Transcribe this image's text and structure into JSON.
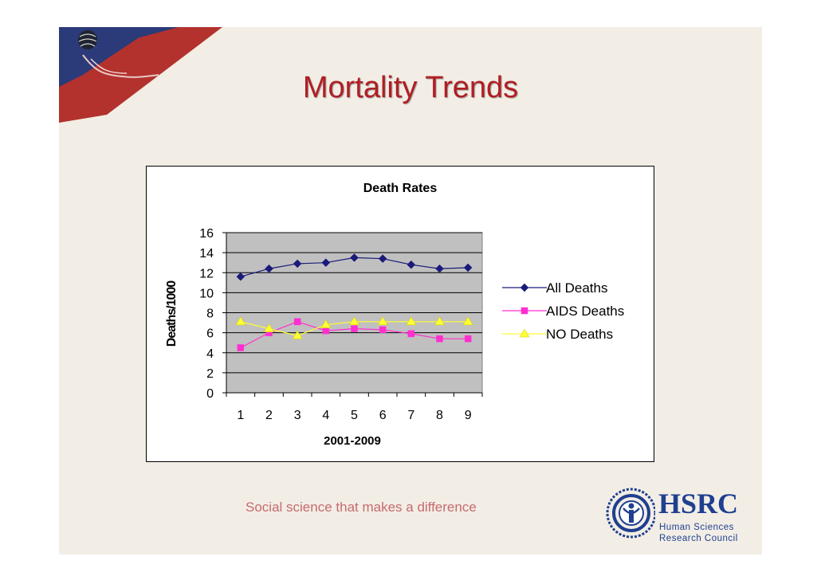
{
  "slide": {
    "title": "Mortality Trends",
    "tagline": "Social science that makes a difference"
  },
  "logo": {
    "name": "HSRC",
    "line1": "Human Sciences",
    "line2": "Research Council"
  },
  "colors": {
    "title": "#b01e24",
    "all_deaths": "#1a1a7a",
    "aids_deaths": "#ff2fd0",
    "no_deaths": "#ffff33",
    "plot_bg": "#c0c0c0",
    "logo": "#1f3f8f"
  },
  "chart_data": {
    "type": "line",
    "title": "Death Rates",
    "xlabel": "2001-2009",
    "ylabel": "Deaths/1000",
    "categories": [
      "1",
      "2",
      "3",
      "4",
      "5",
      "6",
      "7",
      "8",
      "9"
    ],
    "ylim": [
      0,
      16
    ],
    "yticks": [
      "0",
      "2",
      "4",
      "6",
      "8",
      "10",
      "12",
      "14",
      "16"
    ],
    "grid": true,
    "legend_position": "right",
    "series": [
      {
        "name": "All Deaths",
        "marker": "diamond",
        "values": [
          11.6,
          12.4,
          12.9,
          13.0,
          13.5,
          13.4,
          12.8,
          12.4,
          12.5
        ]
      },
      {
        "name": "AIDS Deaths",
        "marker": "square",
        "values": [
          4.5,
          6.0,
          7.1,
          6.2,
          6.4,
          6.3,
          5.9,
          5.4,
          5.4
        ]
      },
      {
        "name": "NO Deaths",
        "marker": "triangle",
        "values": [
          7.1,
          6.4,
          5.7,
          6.8,
          7.1,
          7.1,
          7.1,
          7.1,
          7.1
        ]
      }
    ]
  }
}
